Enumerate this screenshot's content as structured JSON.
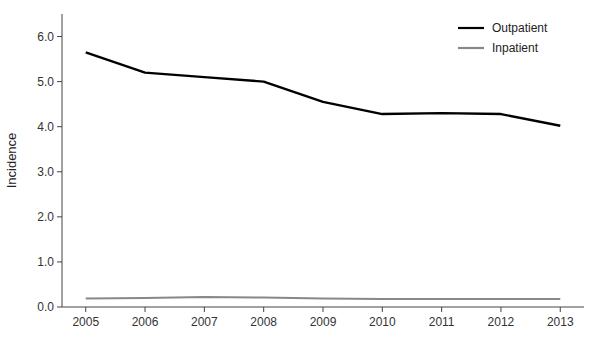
{
  "chart_data": {
    "type": "line",
    "y_label": "Incidence",
    "x": [
      2005,
      2006,
      2007,
      2008,
      2009,
      2010,
      2011,
      2012,
      2013
    ],
    "series": [
      {
        "name": "Outpatient",
        "color": "#000000",
        "values": [
          5.65,
          5.2,
          5.1,
          5.0,
          4.55,
          4.28,
          4.3,
          4.28,
          4.02
        ]
      },
      {
        "name": "Inpatient",
        "color": "#888888",
        "values": [
          0.19,
          0.2,
          0.22,
          0.21,
          0.19,
          0.18,
          0.18,
          0.18,
          0.18
        ]
      }
    ],
    "xlim": [
      2004.6,
      2013.4
    ],
    "xticks": [
      2005,
      2006,
      2007,
      2008,
      2009,
      2010,
      2011,
      2012,
      2013
    ],
    "ylim": [
      0.0,
      6.5
    ],
    "yticks": [
      {
        "value": 0.0,
        "label": "0.0"
      },
      {
        "value": 1.0,
        "label": "1.0"
      },
      {
        "value": 2.0,
        "label": "2.0"
      },
      {
        "value": 3.0,
        "label": "3.0"
      },
      {
        "value": 4.0,
        "label": "4.0"
      },
      {
        "value": 5.0,
        "label": "5.0"
      },
      {
        "value": 6.0,
        "label": "6.0"
      }
    ],
    "grid": false,
    "legend": "upper right"
  }
}
